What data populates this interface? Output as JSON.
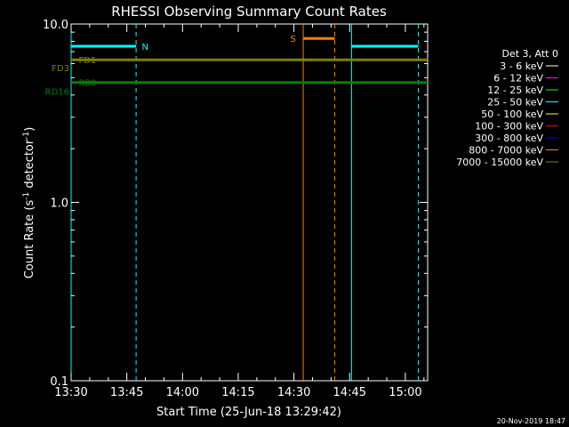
{
  "chart_data": {
    "type": "line",
    "title": "RHESSI Observing Summary Count Rates",
    "xlabel": "Start Time (25-Jun-18 13:29:42)",
    "ylabel_main": "Count Rate (s",
    "ylabel_sup1": "-1",
    "ylabel_mid": " detector",
    "ylabel_sup2": "-1",
    "ylabel_end": ")",
    "y_scale": "log",
    "ylim": [
      0.1,
      10.0
    ],
    "xlim_minutes": [
      0,
      96
    ],
    "x_ticks": [
      {
        "minute": 0,
        "label": "13:30"
      },
      {
        "minute": 15,
        "label": "13:45"
      },
      {
        "minute": 30,
        "label": "14:00"
      },
      {
        "minute": 45,
        "label": "14:15"
      },
      {
        "minute": 60,
        "label": "14:30"
      },
      {
        "minute": 75,
        "label": "14:45"
      },
      {
        "minute": 90,
        "label": "15:00"
      }
    ],
    "y_ticks": [
      {
        "value": 0.1,
        "label": "0.1"
      },
      {
        "value": 1.0,
        "label": "1.0"
      },
      {
        "value": 10.0,
        "label": "10.0"
      }
    ],
    "legend_header": "Det 3, Att 0",
    "legend_position": "right",
    "legend": [
      {
        "label": "3 - 6 keV",
        "color": "#ffffff"
      },
      {
        "label": "6 - 12 keV",
        "color": "#ff00ff"
      },
      {
        "label": "12 - 25 keV",
        "color": "#00ff00"
      },
      {
        "label": "25 - 50 keV",
        "color": "#00ffff"
      },
      {
        "label": "50 - 100 keV",
        "color": "#ffff00"
      },
      {
        "label": "100 - 300 keV",
        "color": "#ff0000"
      },
      {
        "label": "300 - 800 keV",
        "color": "#0000ff"
      },
      {
        "label": "800 - 7000 keV",
        "color": "#ff8000"
      },
      {
        "label": "7000 - 15000 keV",
        "color": "#808000"
      }
    ],
    "flag_bars": [
      {
        "label": "N",
        "color": "#00ffff",
        "value": 7.5,
        "segments": [
          [
            0,
            17.5
          ],
          [
            75.5,
            93.5
          ]
        ],
        "label_minute": 19.5
      },
      {
        "label": "S",
        "color": "#ff8000",
        "value": 8.3,
        "segments": [
          [
            62.5,
            71
          ]
        ],
        "label_minute": 59.5
      },
      {
        "label": "FD1",
        "color": "#808000",
        "value": 6.3,
        "segments": [
          [
            0,
            96
          ]
        ],
        "label_minute": 2.5
      },
      {
        "label": "RB0",
        "color": "#008000",
        "value": 4.7,
        "segments": [
          [
            0,
            96
          ]
        ],
        "label_minute": 2.5
      }
    ],
    "left_labels": [
      {
        "label": "FD3",
        "color": "#808000",
        "value": 5.7
      },
      {
        "label": "RD16",
        "color": "#008000",
        "value": 4.2
      }
    ],
    "vertical_lines": [
      {
        "minute": 0,
        "color": "#00ffff",
        "style": "solid"
      },
      {
        "minute": 17.5,
        "color": "#00ffff",
        "style": "dashed"
      },
      {
        "minute": 62.5,
        "color": "#ff8000",
        "style": "solid"
      },
      {
        "minute": 71,
        "color": "#ff8000",
        "style": "dashed"
      },
      {
        "minute": 75.5,
        "color": "#00ffff",
        "style": "solid"
      },
      {
        "minute": 93.5,
        "color": "#00ffff",
        "style": "dashed"
      }
    ],
    "grid": false
  },
  "footer_timestamp": "20-Nov-2019 18:47",
  "colors": {
    "background": "#000000",
    "axes": "#ffffff"
  }
}
